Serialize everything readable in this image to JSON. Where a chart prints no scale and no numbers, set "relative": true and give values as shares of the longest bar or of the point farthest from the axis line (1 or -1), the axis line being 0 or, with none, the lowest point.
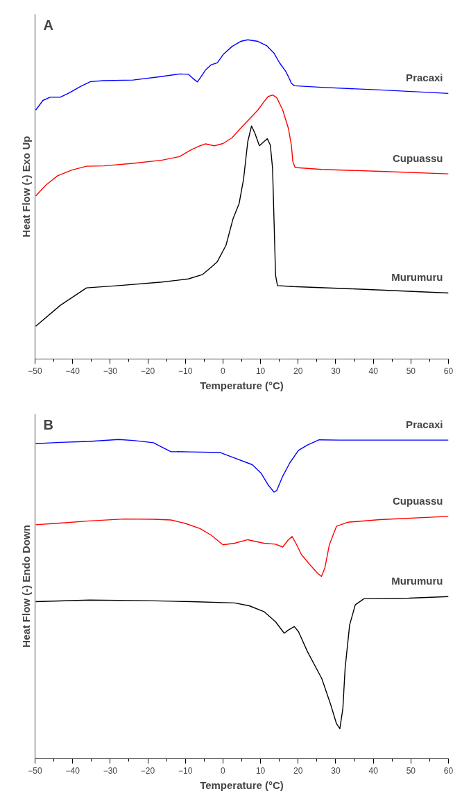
{
  "chart_data": [
    {
      "type": "line",
      "relative": true,
      "xlabel": "Temperature (°C)",
      "ylabel": "Heat Flow (-) Exo Up",
      "annotations": [
        "A"
      ],
      "xlim": [
        -50,
        60
      ],
      "xticks": [
        -50,
        -40,
        -30,
        -20,
        -10,
        0,
        10,
        20,
        30,
        40,
        50,
        60
      ],
      "tick_labels": "x",
      "grid": false,
      "legend": false,
      "marker": "none",
      "line_style": "solid",
      "series": [
        {
          "name": "Pracaxi",
          "color": "#0000ff",
          "x": [
            -49.8,
            -47.9,
            -46.0,
            -43.3,
            -41.0,
            -37.9,
            -35.2,
            -31.7,
            -23.9,
            -16.2,
            -11.6,
            -9.2,
            -8.1,
            -6.8,
            -5.8,
            -4.6,
            -3.1,
            -1.5,
            0.0,
            2.4,
            4.7,
            6.6,
            9.3,
            11.6,
            13.6,
            15.1,
            16.7,
            17.4,
            18.2,
            19.0,
            26.3,
            41.8,
            60
          ],
          "values": [
            0.78,
            0.81,
            0.82,
            0.82,
            0.833,
            0.854,
            0.869,
            0.872,
            0.874,
            0.885,
            0.893,
            0.892,
            0.88,
            0.868,
            0.885,
            0.906,
            0.922,
            0.928,
            0.953,
            0.979,
            0.995,
            1.0,
            0.995,
            0.982,
            0.958,
            0.927,
            0.901,
            0.885,
            0.864,
            0.856,
            0.851,
            0.843,
            0.832
          ]
        },
        {
          "name": "Cupuassu",
          "color": "#ff0000",
          "x": [
            -49.8,
            -47.1,
            -44.0,
            -40.2,
            -36.3,
            -31.7,
            -23.9,
            -16.2,
            -11.6,
            -8.5,
            -6.1,
            -4.6,
            -2.3,
            0.0,
            2.4,
            4.7,
            7.0,
            9.3,
            10.9,
            12.0,
            13.2,
            14.3,
            15.9,
            17.4,
            18.2,
            18.6,
            19.2,
            26.3,
            41.8,
            60
          ],
          "values": [
            0.511,
            0.545,
            0.574,
            0.592,
            0.604,
            0.605,
            0.613,
            0.623,
            0.634,
            0.655,
            0.668,
            0.674,
            0.668,
            0.675,
            0.693,
            0.723,
            0.751,
            0.78,
            0.806,
            0.822,
            0.827,
            0.819,
            0.78,
            0.723,
            0.67,
            0.618,
            0.6,
            0.594,
            0.588,
            0.58
          ]
        },
        {
          "name": "Murumuru",
          "color": "#000000",
          "x": [
            -49.8,
            -43.3,
            -36.3,
            -27.8,
            -16.2,
            -9.2,
            -5.4,
            -3.1,
            -1.5,
            0.8,
            2.7,
            4.3,
            5.5,
            6.6,
            7.6,
            8.5,
            9.7,
            10.9,
            11.8,
            12.6,
            13.2,
            13.6,
            14.0,
            14.5,
            18.6,
            34.1,
            60
          ],
          "values": [
            0.103,
            0.168,
            0.223,
            0.23,
            0.241,
            0.251,
            0.265,
            0.288,
            0.305,
            0.356,
            0.44,
            0.487,
            0.565,
            0.681,
            0.73,
            0.707,
            0.668,
            0.681,
            0.69,
            0.67,
            0.597,
            0.429,
            0.262,
            0.23,
            0.227,
            0.22,
            0.207
          ]
        }
      ]
    },
    {
      "type": "line",
      "relative": true,
      "xlabel": "Temperature (°C)",
      "ylabel": "Heat Flow (-) Endo Down",
      "annotations": [
        "B"
      ],
      "xlim": [
        -50,
        60
      ],
      "xticks": [
        -50,
        -40,
        -30,
        -20,
        -10,
        0,
        10,
        20,
        30,
        40,
        50,
        60
      ],
      "tick_labels": "x",
      "grid": false,
      "legend": false,
      "marker": "none",
      "line_style": "solid",
      "series": [
        {
          "name": "Pracaxi",
          "color": "#0000ff",
          "x": [
            -49.8,
            -43.3,
            -35.5,
            -27.8,
            -23.9,
            -18.5,
            -16.2,
            -13.9,
            -8.5,
            -0.7,
            3.1,
            7.8,
            10.1,
            12.0,
            13.6,
            14.3,
            15.9,
            17.8,
            20.1,
            22.5,
            25.6,
            31.0,
            60
          ],
          "values": [
            0.987,
            0.991,
            0.994,
            1.0,
            0.997,
            0.99,
            0.976,
            0.962,
            0.961,
            0.959,
            0.942,
            0.921,
            0.895,
            0.858,
            0.835,
            0.84,
            0.885,
            0.927,
            0.966,
            0.983,
            0.999,
            0.998,
            0.998
          ]
        },
        {
          "name": "Cupuassu",
          "color": "#ff0000",
          "x": [
            -49.8,
            -43.3,
            -35.5,
            -26.3,
            -18.5,
            -13.9,
            -10.0,
            -6.1,
            -3.1,
            0.0,
            3.1,
            6.6,
            10.9,
            14.0,
            15.9,
            17.4,
            18.4,
            19.4,
            20.9,
            23.2,
            25.2,
            26.2,
            27.1,
            28.3,
            30.2,
            33.3,
            41.8,
            60
          ],
          "values": [
            0.733,
            0.738,
            0.745,
            0.751,
            0.75,
            0.748,
            0.737,
            0.721,
            0.7,
            0.67,
            0.675,
            0.686,
            0.675,
            0.672,
            0.663,
            0.686,
            0.696,
            0.675,
            0.639,
            0.607,
            0.581,
            0.571,
            0.597,
            0.67,
            0.728,
            0.741,
            0.749,
            0.759
          ]
        },
        {
          "name": "Murumuru",
          "color": "#000000",
          "x": [
            -49.8,
            -35.5,
            -20.1,
            -8.5,
            3.1,
            7.0,
            10.9,
            14.0,
            16.3,
            17.4,
            19.0,
            20.1,
            22.5,
            26.3,
            28.7,
            30.2,
            31.1,
            31.9,
            32.5,
            33.7,
            35.2,
            37.5,
            49.5,
            60
          ],
          "values": [
            0.492,
            0.497,
            0.495,
            0.492,
            0.488,
            0.479,
            0.461,
            0.429,
            0.393,
            0.403,
            0.414,
            0.398,
            0.335,
            0.251,
            0.168,
            0.11,
            0.094,
            0.157,
            0.283,
            0.419,
            0.482,
            0.501,
            0.503,
            0.508
          ]
        }
      ]
    }
  ]
}
